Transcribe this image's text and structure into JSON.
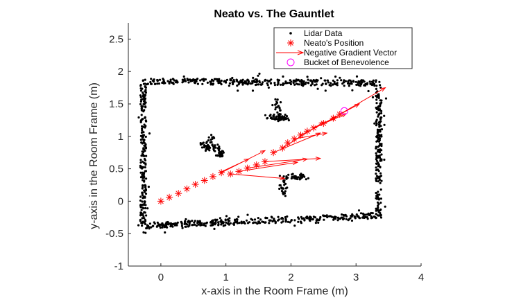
{
  "chart_data": {
    "type": "scatter",
    "title": "Neato vs. The Gauntlet",
    "xlabel": "x-axis in the Room Frame (m)",
    "ylabel": "y-axis in the Room Frame (m)",
    "xlim": [
      -0.5,
      4
    ],
    "ylim": [
      -1,
      2.75
    ],
    "x_ticks": [
      "0",
      "1",
      "2",
      "3",
      "4"
    ],
    "y_ticks": [
      "-1",
      "-0.5",
      "0",
      "0.5",
      "1",
      "1.5",
      "2",
      "2.5"
    ],
    "grid": false,
    "legend_position": "top-right",
    "legend": [
      {
        "label": "Lidar Data",
        "color": "#000000",
        "marker": "dot"
      },
      {
        "label": "Neato's Position",
        "color": "#ff0000",
        "marker": "asterisk"
      },
      {
        "label": "Negative Gradient Vector",
        "color": "#ff0000",
        "marker": "arrow"
      },
      {
        "label": "Bucket of Benevolence",
        "color": "#ff00ff",
        "marker": "circle"
      }
    ],
    "lidar_walls": [
      {
        "from": [
          -0.27,
          1.85
        ],
        "to": [
          3.35,
          1.82
        ]
      },
      {
        "from": [
          -0.27,
          1.8
        ],
        "to": [
          -0.27,
          -0.38
        ]
      },
      {
        "from": [
          -0.27,
          -0.38
        ],
        "to": [
          3.35,
          -0.22
        ]
      },
      {
        "from": [
          3.35,
          1.72
        ],
        "to": [
          3.35,
          -0.22
        ]
      },
      {
        "from": [
          1.6,
          1.3
        ],
        "to": [
          1.95,
          1.27
        ]
      },
      {
        "from": [
          1.8,
          1.58
        ],
        "to": [
          1.8,
          1.25
        ]
      },
      {
        "from": [
          0.75,
          1.0
        ],
        "to": [
          0.95,
          0.72
        ]
      },
      {
        "from": [
          0.6,
          0.9
        ],
        "to": [
          0.95,
          0.7
        ]
      },
      {
        "from": [
          1.9,
          0.38
        ],
        "to": [
          2.25,
          0.38
        ]
      },
      {
        "from": [
          1.9,
          0.38
        ],
        "to": [
          1.9,
          0.07
        ]
      }
    ],
    "neato_positions": [
      [
        0,
        0
      ],
      [
        0.13,
        0.06
      ],
      [
        0.27,
        0.12
      ],
      [
        0.4,
        0.19
      ],
      [
        0.53,
        0.26
      ],
      [
        0.67,
        0.32
      ],
      [
        0.8,
        0.38
      ],
      [
        0.93,
        0.44
      ],
      [
        1.07,
        0.42
      ],
      [
        1.2,
        0.46
      ],
      [
        1.33,
        0.51
      ],
      [
        1.47,
        0.56
      ],
      [
        1.6,
        0.61
      ],
      [
        1.73,
        0.75
      ],
      [
        1.87,
        0.82
      ],
      [
        1.95,
        0.9
      ],
      [
        2.05,
        0.96
      ],
      [
        2.15,
        1.02
      ],
      [
        2.25,
        1.08
      ],
      [
        2.35,
        1.13
      ],
      [
        2.5,
        1.2
      ],
      [
        2.65,
        1.28
      ],
      [
        2.75,
        1.34
      ]
    ],
    "gradient_vectors": [
      {
        "from": [
          0.9,
          0.44
        ],
        "to": [
          1.35,
          0.65
        ]
      },
      {
        "from": [
          0.93,
          0.44
        ],
        "to": [
          1.6,
          0.78
        ]
      },
      {
        "from": [
          1.07,
          0.42
        ],
        "to": [
          1.9,
          0.35
        ]
      },
      {
        "from": [
          1.2,
          0.46
        ],
        "to": [
          2.1,
          0.6
        ]
      },
      {
        "from": [
          1.33,
          0.51
        ],
        "to": [
          2.25,
          0.65
        ]
      },
      {
        "from": [
          1.6,
          0.61
        ],
        "to": [
          2.45,
          0.66
        ]
      },
      {
        "from": [
          1.73,
          0.75
        ],
        "to": [
          2.45,
          1.05
        ]
      },
      {
        "from": [
          1.87,
          0.82
        ],
        "to": [
          2.5,
          1.22
        ]
      },
      {
        "from": [
          2.05,
          0.96
        ],
        "to": [
          2.55,
          1.05
        ]
      },
      {
        "from": [
          2.15,
          1.02
        ],
        "to": [
          2.7,
          1.3
        ]
      },
      {
        "from": [
          2.35,
          1.13
        ],
        "to": [
          2.85,
          1.35
        ]
      },
      {
        "from": [
          2.5,
          1.2
        ],
        "to": [
          3.05,
          1.5
        ]
      },
      {
        "from": [
          2.75,
          1.34
        ],
        "to": [
          3.45,
          1.75
        ]
      }
    ],
    "bucket": [
      2.82,
      1.39
    ]
  }
}
